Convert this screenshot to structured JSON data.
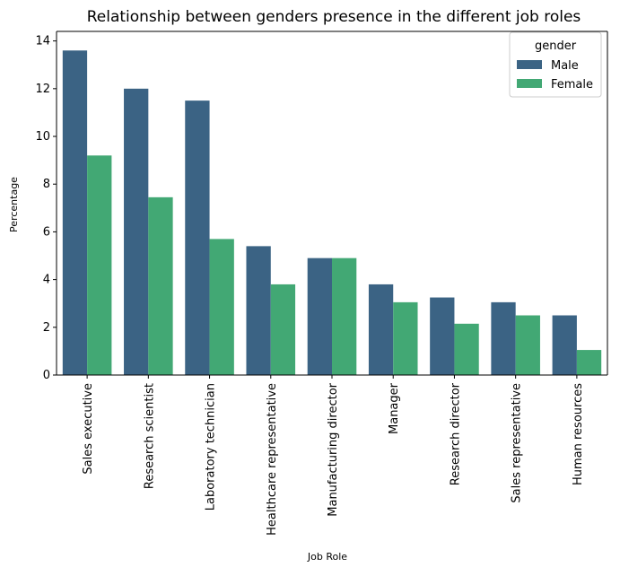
{
  "chart_data": {
    "type": "bar",
    "title": "Relationship between genders presence in the different job roles",
    "xlabel": "Job Role",
    "ylabel": "Percentage",
    "ylim": [
      0,
      14.4
    ],
    "yticks": [
      0,
      2,
      4,
      6,
      8,
      10,
      12,
      14
    ],
    "grid": false,
    "categories": [
      "Sales executive",
      "Research scientist",
      "Laboratory technician",
      "Healthcare representative",
      "Manufacturing director",
      "Manager",
      "Research director",
      "Sales representative",
      "Human resources"
    ],
    "legend": {
      "title": "gender",
      "placement": "top-right"
    },
    "series": [
      {
        "name": "Male",
        "color": "#3b6384",
        "values": [
          13.6,
          12.0,
          11.5,
          5.4,
          4.9,
          3.8,
          3.25,
          3.05,
          2.5
        ]
      },
      {
        "name": "Female",
        "color": "#42a874",
        "values": [
          9.2,
          7.45,
          5.7,
          3.8,
          4.9,
          3.05,
          2.15,
          2.5,
          1.05
        ]
      }
    ]
  }
}
